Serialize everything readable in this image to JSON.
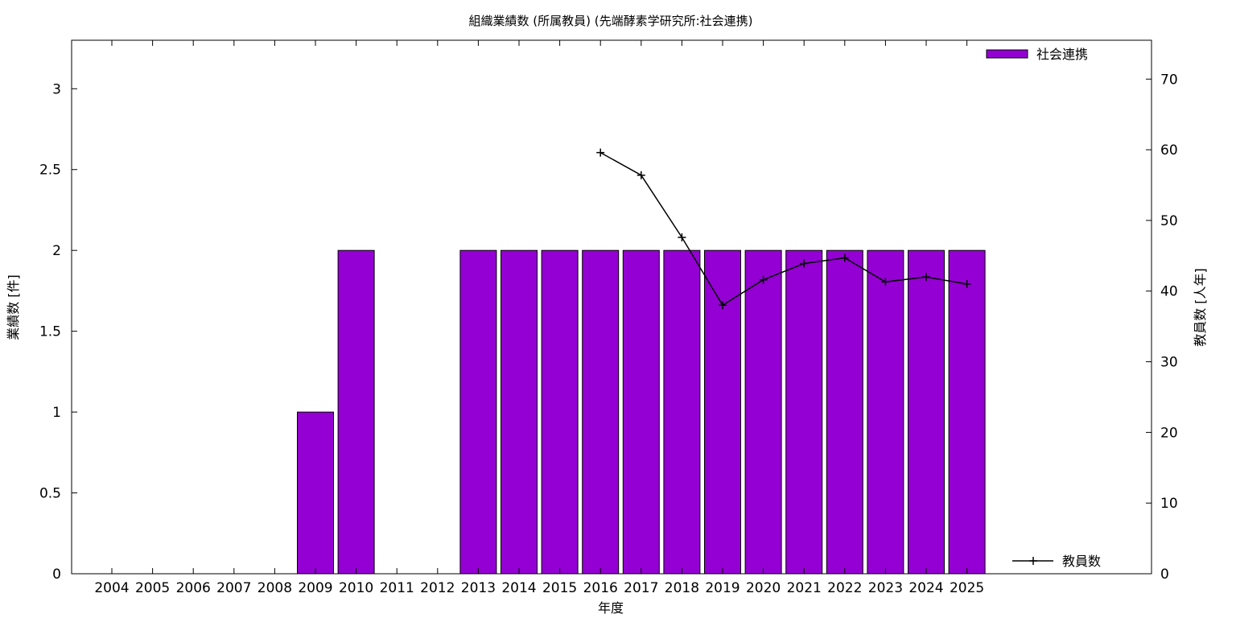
{
  "chart_data": {
    "type": "bar",
    "title": "組織業績数 (所属教員) (先端酵素学研究所:社会連携)",
    "xlabel": "年度",
    "ylabel": "業績数 [件]",
    "y2label": "教員数 [人年]",
    "categories": [
      "2004",
      "2005",
      "2006",
      "2007",
      "2008",
      "2009",
      "2010",
      "2011",
      "2012",
      "2013",
      "2014",
      "2015",
      "2016",
      "2017",
      "2018",
      "2019",
      "2020",
      "2021",
      "2022",
      "2023",
      "2024",
      "2025"
    ],
    "series": [
      {
        "name": "社会連携",
        "type": "bar",
        "axis": "left",
        "color": "#9400d3",
        "values": [
          0,
          0,
          0,
          0,
          0,
          1,
          2,
          0,
          0,
          2,
          2,
          2,
          2,
          2,
          2,
          2,
          2,
          2,
          2,
          2,
          2,
          2
        ]
      },
      {
        "name": "教員数",
        "type": "line",
        "axis": "right",
        "color": "#000000",
        "values": [
          null,
          null,
          null,
          null,
          null,
          null,
          null,
          null,
          null,
          null,
          null,
          null,
          59.6,
          56.4,
          47.6,
          38.0,
          41.6,
          43.9,
          44.7,
          41.3,
          42.0,
          41.0
        ]
      }
    ],
    "ylim": [
      0,
      3.3
    ],
    "y2lim": [
      0,
      75.5
    ],
    "yticks": [
      "0",
      "0.5",
      "1",
      "1.5",
      "2",
      "2.5",
      "3"
    ],
    "y2ticks": [
      "0",
      "10",
      "20",
      "30",
      "40",
      "50",
      "60",
      "70"
    ],
    "grid": false,
    "legend": [
      "top-right",
      "bottom-right"
    ]
  }
}
